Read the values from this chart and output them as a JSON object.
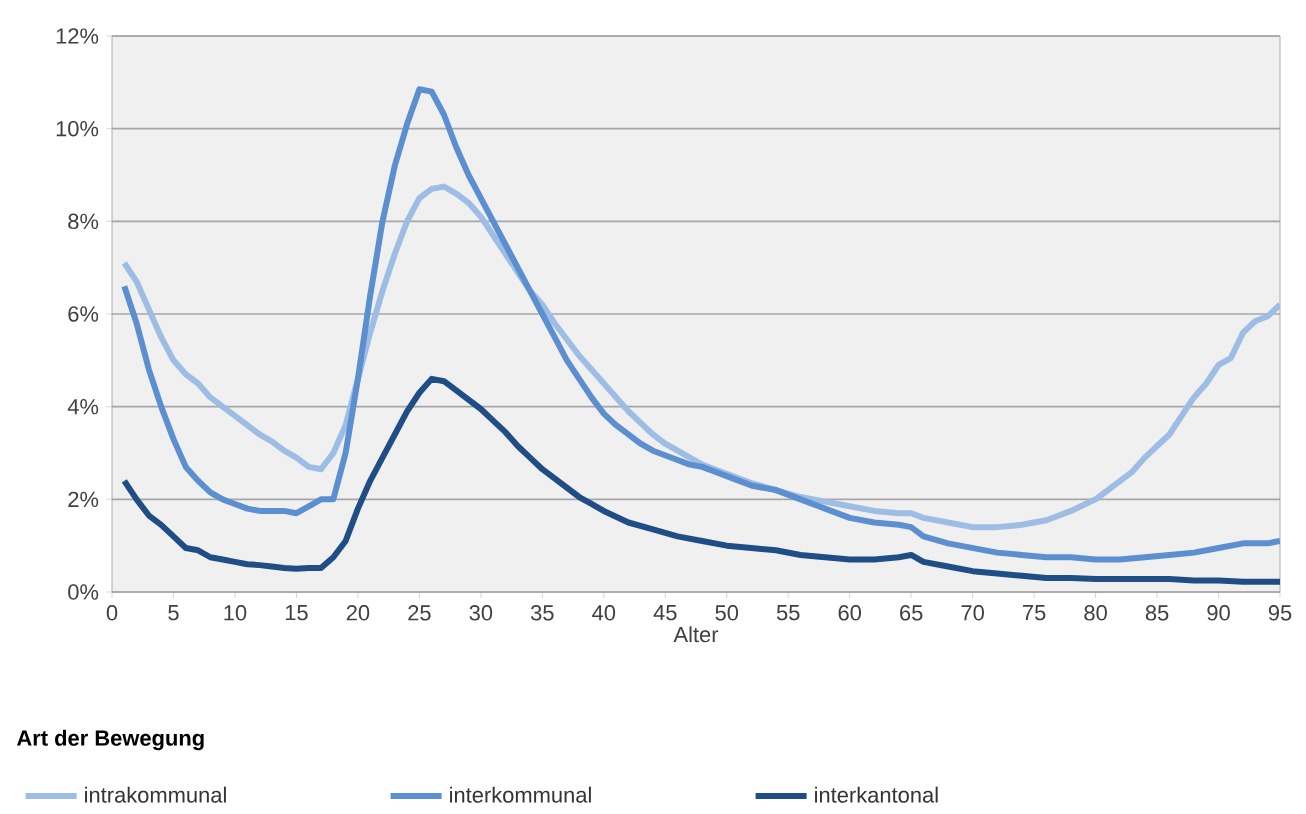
{
  "chart_data": {
    "type": "line",
    "xlabel": "Alter",
    "legend_title": "Art der Bewegung",
    "legend": "bottom",
    "grid": "y",
    "marker": "none",
    "line_style": "solid",
    "xlim": [
      0,
      95
    ],
    "xticks": [
      0,
      5,
      10,
      15,
      20,
      25,
      30,
      35,
      40,
      45,
      50,
      55,
      60,
      65,
      70,
      75,
      80,
      85,
      90,
      95
    ],
    "ylim": [
      0,
      12
    ],
    "yticks": [
      {
        "value": 0,
        "label": "0%"
      },
      {
        "value": 2,
        "label": "2%"
      },
      {
        "value": 4,
        "label": "4%"
      },
      {
        "value": 6,
        "label": "6%"
      },
      {
        "value": 8,
        "label": "8%"
      },
      {
        "value": 10,
        "label": "10%"
      },
      {
        "value": 12,
        "label": "12%"
      }
    ],
    "series": [
      {
        "name": "intrakommunal",
        "color": "#9dbde5",
        "x": [
          1,
          2,
          3,
          4,
          5,
          6,
          7,
          8,
          9,
          10,
          11,
          12,
          13,
          14,
          15,
          16,
          17,
          18,
          19,
          20,
          21,
          22,
          23,
          24,
          25,
          26,
          27,
          28,
          29,
          30,
          31,
          32,
          33,
          34,
          35,
          36,
          37,
          38,
          39,
          40,
          41,
          42,
          43,
          44,
          45,
          46,
          47,
          48,
          49,
          50,
          52,
          54,
          56,
          58,
          60,
          62,
          64,
          65,
          66,
          68,
          70,
          72,
          74,
          75,
          76,
          78,
          80,
          81,
          82,
          83,
          84,
          85,
          86,
          87,
          88,
          89,
          90,
          91,
          92,
          93,
          94,
          95
        ],
        "values": [
          7.1,
          6.7,
          6.1,
          5.5,
          5.0,
          4.7,
          4.5,
          4.2,
          4.0,
          3.8,
          3.6,
          3.4,
          3.25,
          3.05,
          2.9,
          2.7,
          2.65,
          3.0,
          3.6,
          4.6,
          5.6,
          6.5,
          7.3,
          8.0,
          8.5,
          8.7,
          8.75,
          8.6,
          8.4,
          8.1,
          7.7,
          7.3,
          6.9,
          6.5,
          6.2,
          5.8,
          5.45,
          5.1,
          4.8,
          4.5,
          4.2,
          3.9,
          3.65,
          3.4,
          3.2,
          3.05,
          2.9,
          2.75,
          2.65,
          2.55,
          2.35,
          2.2,
          2.05,
          1.95,
          1.85,
          1.75,
          1.7,
          1.7,
          1.6,
          1.5,
          1.4,
          1.4,
          1.45,
          1.5,
          1.55,
          1.75,
          2.0,
          2.2,
          2.4,
          2.6,
          2.9,
          3.15,
          3.4,
          3.8,
          4.2,
          4.5,
          4.9,
          5.05,
          5.6,
          5.85,
          5.95,
          6.2
        ]
      },
      {
        "name": "interkommunal",
        "color": "#5b8fd0",
        "x": [
          1,
          2,
          3,
          4,
          5,
          6,
          7,
          8,
          9,
          10,
          11,
          12,
          13,
          14,
          15,
          16,
          17,
          18,
          19,
          20,
          21,
          22,
          23,
          24,
          25,
          26,
          27,
          28,
          29,
          30,
          31,
          32,
          33,
          34,
          35,
          36,
          37,
          38,
          39,
          40,
          41,
          42,
          43,
          44,
          45,
          46,
          47,
          48,
          49,
          50,
          52,
          54,
          56,
          58,
          60,
          62,
          64,
          65,
          66,
          68,
          70,
          72,
          74,
          76,
          78,
          80,
          82,
          84,
          86,
          88,
          90,
          92,
          94,
          95
        ],
        "values": [
          6.6,
          5.8,
          4.8,
          4.0,
          3.3,
          2.7,
          2.4,
          2.15,
          2.0,
          1.9,
          1.8,
          1.75,
          1.75,
          1.75,
          1.7,
          1.85,
          2.0,
          2.0,
          3.0,
          4.6,
          6.4,
          8.0,
          9.2,
          10.1,
          10.85,
          10.8,
          10.3,
          9.6,
          9.0,
          8.5,
          8.0,
          7.5,
          7.0,
          6.5,
          6.0,
          5.5,
          5.0,
          4.6,
          4.2,
          3.85,
          3.6,
          3.4,
          3.2,
          3.05,
          2.95,
          2.85,
          2.75,
          2.7,
          2.6,
          2.5,
          2.3,
          2.2,
          2.0,
          1.8,
          1.6,
          1.5,
          1.45,
          1.4,
          1.2,
          1.05,
          0.95,
          0.85,
          0.8,
          0.75,
          0.75,
          0.7,
          0.7,
          0.75,
          0.8,
          0.85,
          0.95,
          1.05,
          1.05,
          1.1
        ]
      },
      {
        "name": "interkantonal",
        "color": "#1f4e87",
        "x": [
          1,
          2,
          3,
          4,
          5,
          6,
          7,
          8,
          9,
          10,
          11,
          12,
          13,
          14,
          15,
          16,
          17,
          18,
          19,
          20,
          21,
          22,
          23,
          24,
          25,
          26,
          27,
          28,
          29,
          30,
          31,
          32,
          33,
          34,
          35,
          36,
          37,
          38,
          39,
          40,
          42,
          44,
          46,
          48,
          50,
          52,
          54,
          56,
          58,
          60,
          62,
          64,
          65,
          66,
          68,
          70,
          72,
          74,
          76,
          78,
          80,
          82,
          84,
          86,
          88,
          90,
          92,
          94,
          95
        ],
        "values": [
          2.4,
          2.0,
          1.65,
          1.45,
          1.2,
          0.95,
          0.9,
          0.75,
          0.7,
          0.65,
          0.6,
          0.58,
          0.55,
          0.52,
          0.5,
          0.52,
          0.52,
          0.75,
          1.1,
          1.8,
          2.4,
          2.9,
          3.4,
          3.9,
          4.3,
          4.6,
          4.55,
          4.35,
          4.15,
          3.95,
          3.7,
          3.45,
          3.15,
          2.9,
          2.65,
          2.45,
          2.25,
          2.05,
          1.9,
          1.75,
          1.5,
          1.35,
          1.2,
          1.1,
          1.0,
          0.95,
          0.9,
          0.8,
          0.75,
          0.7,
          0.7,
          0.75,
          0.8,
          0.65,
          0.55,
          0.45,
          0.4,
          0.35,
          0.3,
          0.3,
          0.28,
          0.28,
          0.28,
          0.28,
          0.25,
          0.25,
          0.22,
          0.22,
          0.22
        ]
      }
    ]
  }
}
